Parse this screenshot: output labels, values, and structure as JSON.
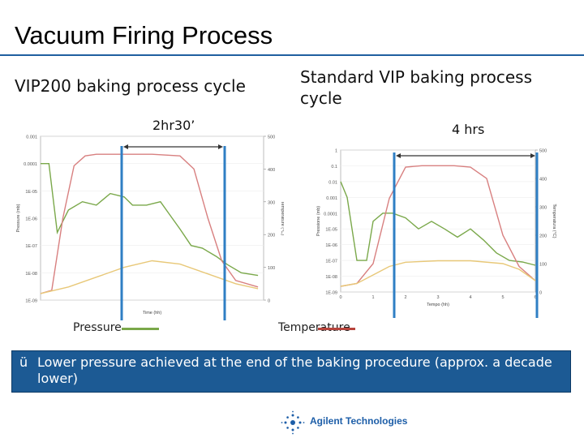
{
  "slide": {
    "title": "Vacuum Firing Process",
    "left_subtitle": "VIP200 baking process cycle",
    "right_subtitle": "Standard VIP baking process cycle",
    "left_duration": "2hr30’",
    "right_duration": "4 hrs",
    "legend_pressure": "Pressure",
    "legend_temperature": "Temperature",
    "note_check": "ü",
    "note": "Lower pressure achieved at the end of the baking procedure (approx. a decade lower)",
    "logo_text": "Agilent Technologies"
  },
  "colors": {
    "pressure": "#7aa84a",
    "temperature": "#d88080",
    "third_trace": "#e8c878",
    "marker": "#2f7fc4",
    "note_bg": "#1c5a94"
  },
  "chart_data": [
    {
      "type": "line",
      "title": "",
      "xlabel": "Time (hh)",
      "ylabel": "Pressure (mb)",
      "y2label": "Temperature (°C)",
      "ylog": true,
      "yticks": [
        "0.001",
        "0.0001",
        "1E-05",
        "1E-06",
        "1E-07",
        "1E-08",
        "1E-09"
      ],
      "y2ticks": [
        "500",
        "400",
        "300",
        "200",
        "100",
        "0"
      ],
      "xlim": [
        0,
        8
      ],
      "series": [
        {
          "name": "Pressure",
          "axis": "left",
          "x": [
            0.0,
            0.3,
            0.6,
            1.0,
            1.5,
            2.0,
            2.5,
            3.0,
            3.3,
            3.8,
            4.3,
            4.6,
            5.0,
            5.4,
            5.8,
            6.3,
            6.7,
            7.2,
            7.8
          ],
          "y": [
            0.0001,
            0.0001,
            3e-07,
            2e-06,
            4e-06,
            3e-06,
            8e-06,
            6e-06,
            3e-06,
            3e-06,
            4e-06,
            1.5e-06,
            4e-07,
            1e-07,
            8e-08,
            4e-08,
            2e-08,
            1e-08,
            8e-09
          ]
        },
        {
          "name": "Temperature",
          "axis": "right",
          "x": [
            0.0,
            0.4,
            0.8,
            1.2,
            1.6,
            2.0,
            3.0,
            4.0,
            5.0,
            5.5,
            6.0,
            6.5,
            7.0,
            7.8
          ],
          "y": [
            20,
            30,
            250,
            410,
            440,
            445,
            445,
            445,
            440,
            400,
            250,
            120,
            60,
            40
          ]
        },
        {
          "name": "",
          "axis": "right",
          "x": [
            0.0,
            1.0,
            2.0,
            3.0,
            4.0,
            5.0,
            6.0,
            7.0,
            7.8
          ],
          "y": [
            20,
            40,
            70,
            100,
            120,
            110,
            80,
            50,
            35
          ]
        }
      ]
    },
    {
      "type": "line",
      "title": "",
      "xlabel": "Tempo (hh)",
      "ylabel": "Pressione (mb)",
      "y2label": "Temperatura (°C)",
      "ylog": true,
      "yticks": [
        "1",
        "0.1",
        "0.01",
        "0.001",
        "0.0001",
        "1E-05",
        "1E-06",
        "1E-07",
        "1E-08",
        "1E-09"
      ],
      "y2ticks": [
        "500",
        "400",
        "300",
        "200",
        "100",
        "0"
      ],
      "xticks": [
        "0",
        "1",
        "2",
        "3",
        "4",
        "5",
        "6"
      ],
      "xlim": [
        0,
        6
      ],
      "series": [
        {
          "name": "Pressure",
          "axis": "left",
          "x": [
            0.0,
            0.2,
            0.5,
            0.8,
            1.0,
            1.3,
            1.6,
            2.0,
            2.4,
            2.8,
            3.2,
            3.6,
            4.0,
            4.4,
            4.8,
            5.2,
            5.6,
            6.0
          ],
          "y": [
            0.01,
            0.001,
            1e-07,
            1e-07,
            3e-05,
            0.0001,
            0.0001,
            5e-05,
            1e-05,
            3e-05,
            1e-05,
            3e-06,
            1e-05,
            2e-06,
            3e-07,
            1e-07,
            8e-08,
            5e-08
          ]
        },
        {
          "name": "Temperature",
          "axis": "right",
          "x": [
            0.0,
            0.5,
            1.0,
            1.5,
            2.0,
            2.5,
            3.0,
            3.5,
            4.0,
            4.5,
            5.0,
            5.5,
            6.0
          ],
          "y": [
            20,
            30,
            100,
            330,
            440,
            445,
            445,
            445,
            440,
            400,
            200,
            90,
            40
          ]
        },
        {
          "name": "",
          "axis": "right",
          "x": [
            0.0,
            0.5,
            1.0,
            1.5,
            2.0,
            3.0,
            4.0,
            5.0,
            5.5,
            6.0
          ],
          "y": [
            20,
            30,
            60,
            90,
            105,
            110,
            110,
            100,
            80,
            40
          ]
        }
      ]
    }
  ]
}
